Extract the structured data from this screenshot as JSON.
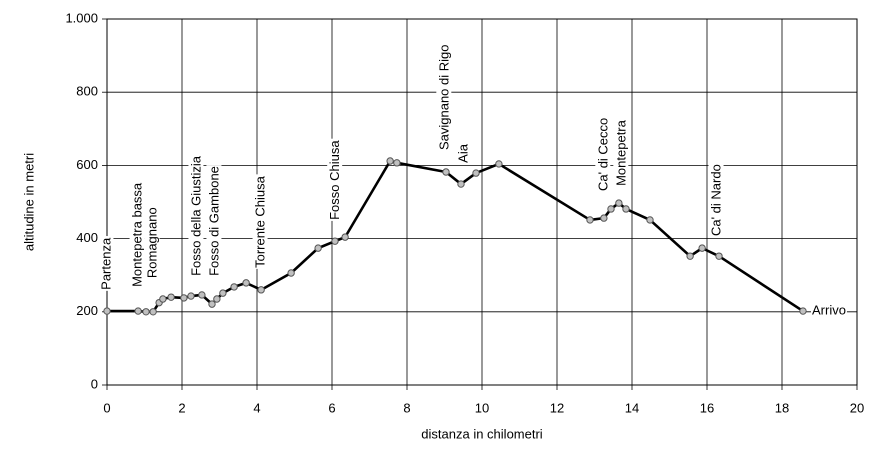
{
  "chart_data": {
    "type": "line",
    "xlabel": "distanza in chilometri",
    "ylabel": "altitudine  in metri",
    "x": [
      0,
      0.83,
      1.04,
      1.23,
      1.39,
      1.49,
      1.71,
      2.05,
      2.24,
      2.53,
      2.8,
      2.93,
      3.09,
      3.39,
      3.71,
      4.11,
      4.91,
      5.63,
      6.08,
      6.35,
      7.55,
      7.73,
      9.04,
      9.44,
      9.84,
      10.45,
      12.88,
      13.25,
      13.44,
      13.65,
      13.84,
      14.48,
      15.55,
      15.87,
      16.32,
      18.56
    ],
    "series": [
      {
        "name": "altitudine",
        "color": "#000000",
        "values": [
          202,
          202,
          200,
          200,
          225,
          235,
          240,
          238,
          243,
          246,
          221,
          235,
          251,
          268,
          279,
          260,
          306,
          374,
          393,
          404,
          612,
          607,
          582,
          549,
          579,
          604,
          451,
          456,
          481,
          497,
          481,
          451,
          352,
          374,
          352,
          202
        ]
      }
    ],
    "marker_fill": "#c0c0c0",
    "xlim": [
      0,
      20
    ],
    "xticks": [
      0,
      2,
      4,
      6,
      8,
      10,
      12,
      14,
      16,
      18,
      20
    ],
    "ylim": [
      0,
      1000
    ],
    "yticks": [
      0,
      200,
      400,
      600,
      800,
      {
        "value": 1000,
        "label": "1.000"
      }
    ],
    "grid": true,
    "annotations": [
      {
        "text": "Partenza",
        "x": 0,
        "y": 260,
        "rotated": true
      },
      {
        "text": "Montepetra bassa",
        "x": 0.83,
        "y": 268,
        "rotated": true
      },
      {
        "text": "Romagnano",
        "x": 1.23,
        "y": 292,
        "rotated": true
      },
      {
        "text": "Fosso della Giustizia",
        "x": 2.4,
        "y": 298,
        "rotated": true
      },
      {
        "text": "Fosso di Gambone",
        "x": 2.88,
        "y": 298,
        "rotated": true
      },
      {
        "text": "Torrente Chiusa",
        "x": 4.11,
        "y": 320,
        "rotated": true
      },
      {
        "text": "Fosso Chiusa",
        "x": 6.1,
        "y": 451,
        "rotated": true
      },
      {
        "text": "Savignano di Rigo",
        "x": 9.01,
        "y": 642,
        "rotated": true
      },
      {
        "text": "Aia",
        "x": 9.52,
        "y": 607,
        "rotated": true
      },
      {
        "text": "Ca' di Cecco",
        "x": 13.25,
        "y": 530,
        "rotated": true
      },
      {
        "text": "Montepetra",
        "x": 13.73,
        "y": 544,
        "rotated": true
      },
      {
        "text": "Ca' di Nardo",
        "x": 16.27,
        "y": 407,
        "rotated": true
      },
      {
        "text": "Arrivo",
        "x": 18.8,
        "y": 202,
        "rotated": false
      }
    ]
  }
}
